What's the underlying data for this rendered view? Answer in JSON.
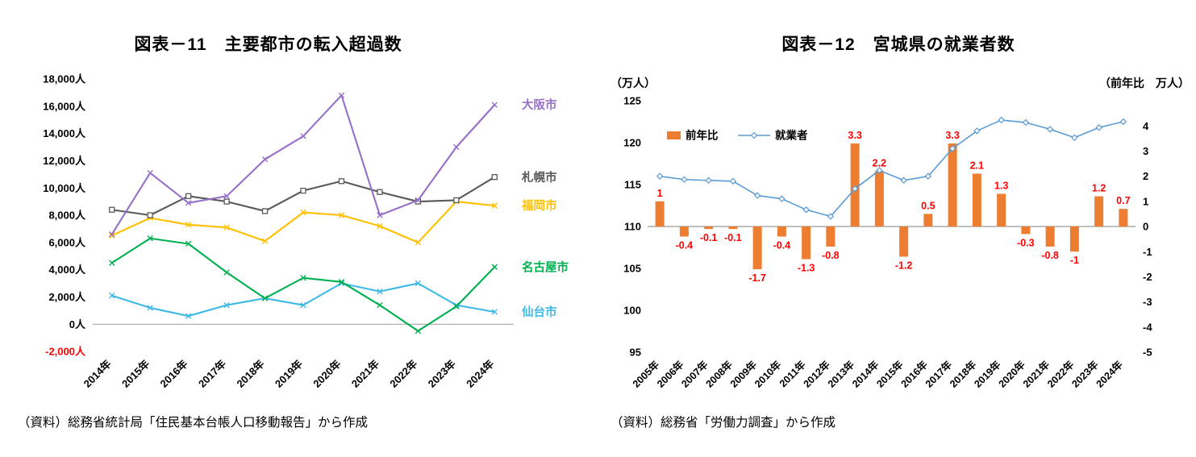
{
  "panels": [
    {
      "title": "図表－11　主要都市の転入超過数",
      "source": "（資料）総務省統計局「住民基本台帳人口移動報告」から作成"
    },
    {
      "title": "図表－12　宮城県の就業者数",
      "source": "（資料）総務省「労働力調査」から作成",
      "left_axis_unit": "（万人）",
      "right_axis_unit": "（前年比　万人）"
    }
  ],
  "chart_data": [
    {
      "type": "line",
      "title": "図表－11　主要都市の転入超過数",
      "unit": "人",
      "x": [
        "2014年",
        "2015年",
        "2016年",
        "2017年",
        "2018年",
        "2019年",
        "2020年",
        "2021年",
        "2022年",
        "2023年",
        "2024年"
      ],
      "ylim": [
        -2000,
        18000
      ],
      "ytick_step": 2000,
      "negative_tick_color": "#FF0000",
      "series": [
        {
          "name": "大阪市",
          "color": "#9670C8",
          "marker": "x",
          "values": [
            6600,
            11100,
            8900,
            9400,
            12100,
            13800,
            16800,
            8000,
            9100,
            13000,
            16100
          ]
        },
        {
          "name": "札幌市",
          "color": "#595959",
          "marker": "square",
          "values": [
            8400,
            8000,
            9400,
            9000,
            8300,
            9800,
            10500,
            9700,
            9000,
            9100,
            10800
          ]
        },
        {
          "name": "福岡市",
          "color": "#FFC000",
          "marker": "x",
          "values": [
            6500,
            7800,
            7300,
            7100,
            6100,
            8200,
            8000,
            7200,
            6000,
            9000,
            8700
          ]
        },
        {
          "name": "名古屋市",
          "color": "#00B050",
          "marker": "x",
          "values": [
            4500,
            6300,
            5900,
            3800,
            1900,
            3400,
            3100,
            1400,
            -500,
            1300,
            4200
          ]
        },
        {
          "name": "仙台市",
          "color": "#3FB9E5",
          "marker": "x",
          "values": [
            2100,
            1200,
            600,
            1400,
            1900,
            1400,
            3000,
            2400,
            3000,
            1400,
            900
          ]
        }
      ]
    },
    {
      "type": "combo",
      "title": "図表－12　宮城県の就業者数",
      "x": [
        "2005年",
        "2006年",
        "2007年",
        "2008年",
        "2009年",
        "2010年",
        "2011年",
        "2012年",
        "2013年",
        "2014年",
        "2015年",
        "2016年",
        "2017年",
        "2018年",
        "2019年",
        "2020年",
        "2021年",
        "2022年",
        "2023年",
        "2024年"
      ],
      "left_ylim": [
        95,
        125
      ],
      "left_ytick_step": 5,
      "right_ylim": [
        -5,
        5
      ],
      "right_ticks": [
        4,
        3,
        2,
        1,
        0,
        -1,
        -2,
        -3,
        -4,
        -5
      ],
      "label_color": "#FF0000",
      "legend": [
        {
          "label": "前年比",
          "type": "bar"
        },
        {
          "label": "就業者",
          "type": "line"
        }
      ],
      "bar_series": {
        "name": "前年比",
        "axis": "right",
        "color": "#ED7D31",
        "values": [
          1,
          -0.4,
          -0.1,
          -0.1,
          -1.7,
          -0.4,
          -1.3,
          -0.8,
          3.3,
          2.2,
          -1.2,
          0.5,
          3.3,
          2.1,
          1.3,
          -0.3,
          -0.8,
          -1,
          1.2,
          0.7
        ],
        "labels": [
          "1",
          "-0.4",
          "-0.1",
          "-0.1",
          "-1.7",
          "-0.4",
          "-1.3",
          "-0.8",
          "3.3",
          "2.2",
          "-1.2",
          "0.5",
          "3.3",
          "2.1",
          "1.3",
          "-0.3",
          "-0.8",
          "-1",
          "1.2",
          "0.7"
        ]
      },
      "line_series": {
        "name": "就業者",
        "axis": "left",
        "color": "#5B9BD5",
        "marker": "diamond",
        "values": [
          116,
          115.6,
          115.5,
          115.4,
          113.7,
          113.3,
          112,
          111.2,
          114.5,
          116.7,
          115.5,
          116,
          119.3,
          121.4,
          122.7,
          122.4,
          121.6,
          120.6,
          121.8,
          122.5
        ]
      }
    }
  ]
}
